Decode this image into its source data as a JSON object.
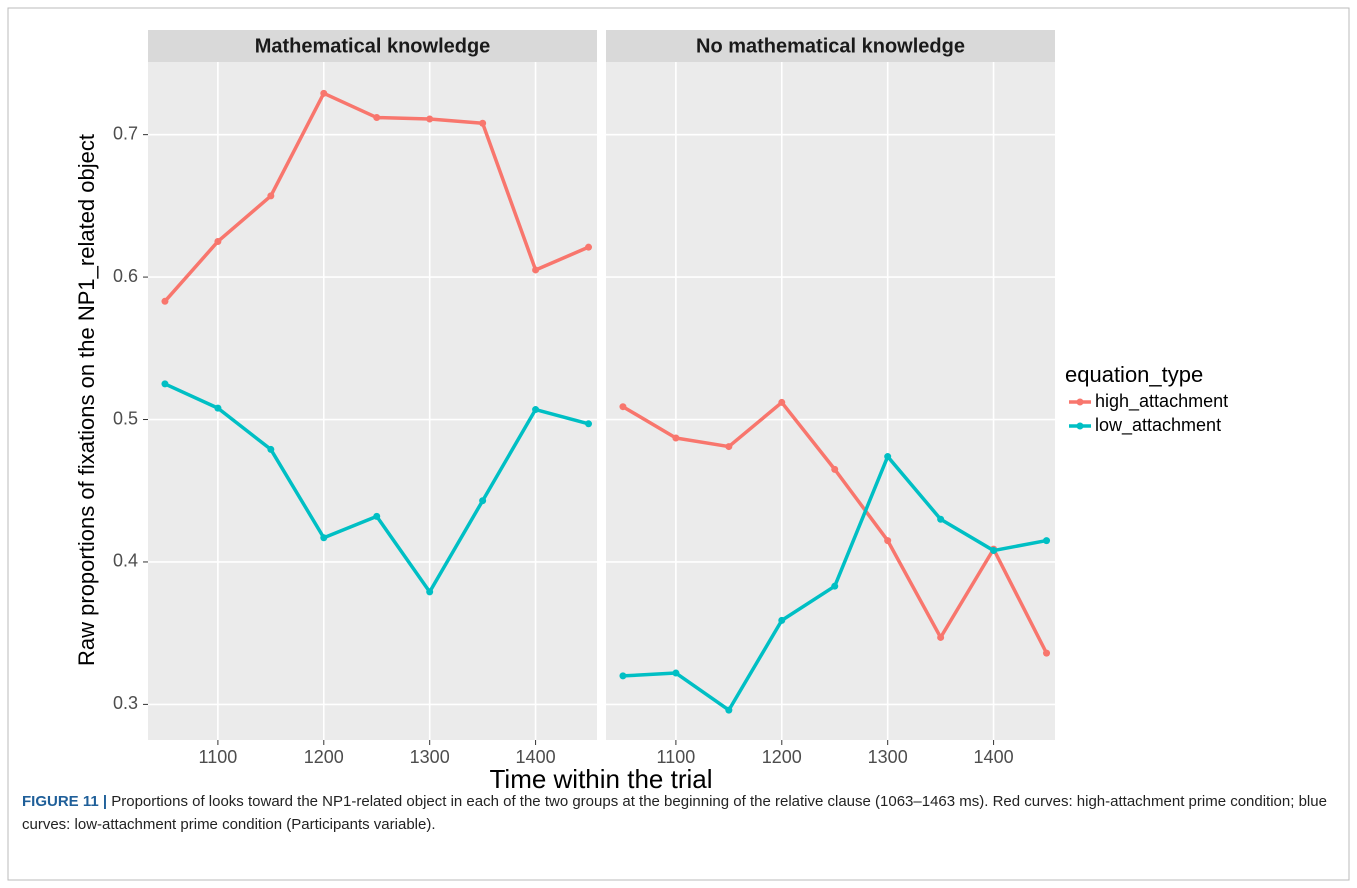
{
  "chart_data": [
    {
      "type": "line",
      "title": "Mathematical knowledge",
      "x": [
        1050,
        1100,
        1150,
        1200,
        1250,
        1300,
        1350,
        1400,
        1450
      ],
      "series": [
        {
          "name": "high_attachment",
          "color": "#f8766d",
          "values": [
            0.583,
            0.625,
            0.657,
            0.729,
            0.712,
            0.711,
            0.708,
            0.605,
            0.621
          ]
        },
        {
          "name": "low_attachment",
          "color": "#00bfc4",
          "values": [
            0.525,
            0.508,
            0.479,
            0.417,
            0.432,
            0.379,
            0.443,
            0.507,
            0.497
          ]
        }
      ],
      "xlim": [
        1034,
        1458
      ],
      "xticks": [
        1100,
        1200,
        1300,
        1400
      ],
      "ylim": [
        0.275,
        0.751
      ],
      "yticks": [
        0.3,
        0.4,
        0.5,
        0.6,
        0.7
      ],
      "grid": true
    },
    {
      "type": "line",
      "title": "No mathematical knowledge",
      "x": [
        1050,
        1100,
        1150,
        1200,
        1250,
        1300,
        1350,
        1400,
        1450
      ],
      "series": [
        {
          "name": "high_attachment",
          "color": "#f8766d",
          "values": [
            0.509,
            0.487,
            0.481,
            0.512,
            0.465,
            0.415,
            0.347,
            0.409,
            0.336
          ]
        },
        {
          "name": "low_attachment",
          "color": "#00bfc4",
          "values": [
            0.32,
            0.322,
            0.296,
            0.359,
            0.383,
            0.474,
            0.43,
            0.408,
            0.415
          ]
        }
      ],
      "xlim": [
        1034,
        1458
      ],
      "xticks": [
        1100,
        1200,
        1300,
        1400
      ],
      "ylim": [
        0.275,
        0.751
      ],
      "yticks": [
        0.3,
        0.4,
        0.5,
        0.6,
        0.7
      ],
      "grid": true
    }
  ],
  "figure": {
    "ylabel": "Raw proportions of fixations on the NP1_related object",
    "xlabel": "Time within the trial",
    "legend_title": "equation_type",
    "caption_label": "FIGURE 11 |",
    "caption_text": "Proportions of looks toward the NP1-related object in each of the two groups at the beginning of the relative clause (1063–1463 ms). Red curves: high-attachment prime condition; blue curves: low-attachment prime condition (Participants variable)."
  }
}
